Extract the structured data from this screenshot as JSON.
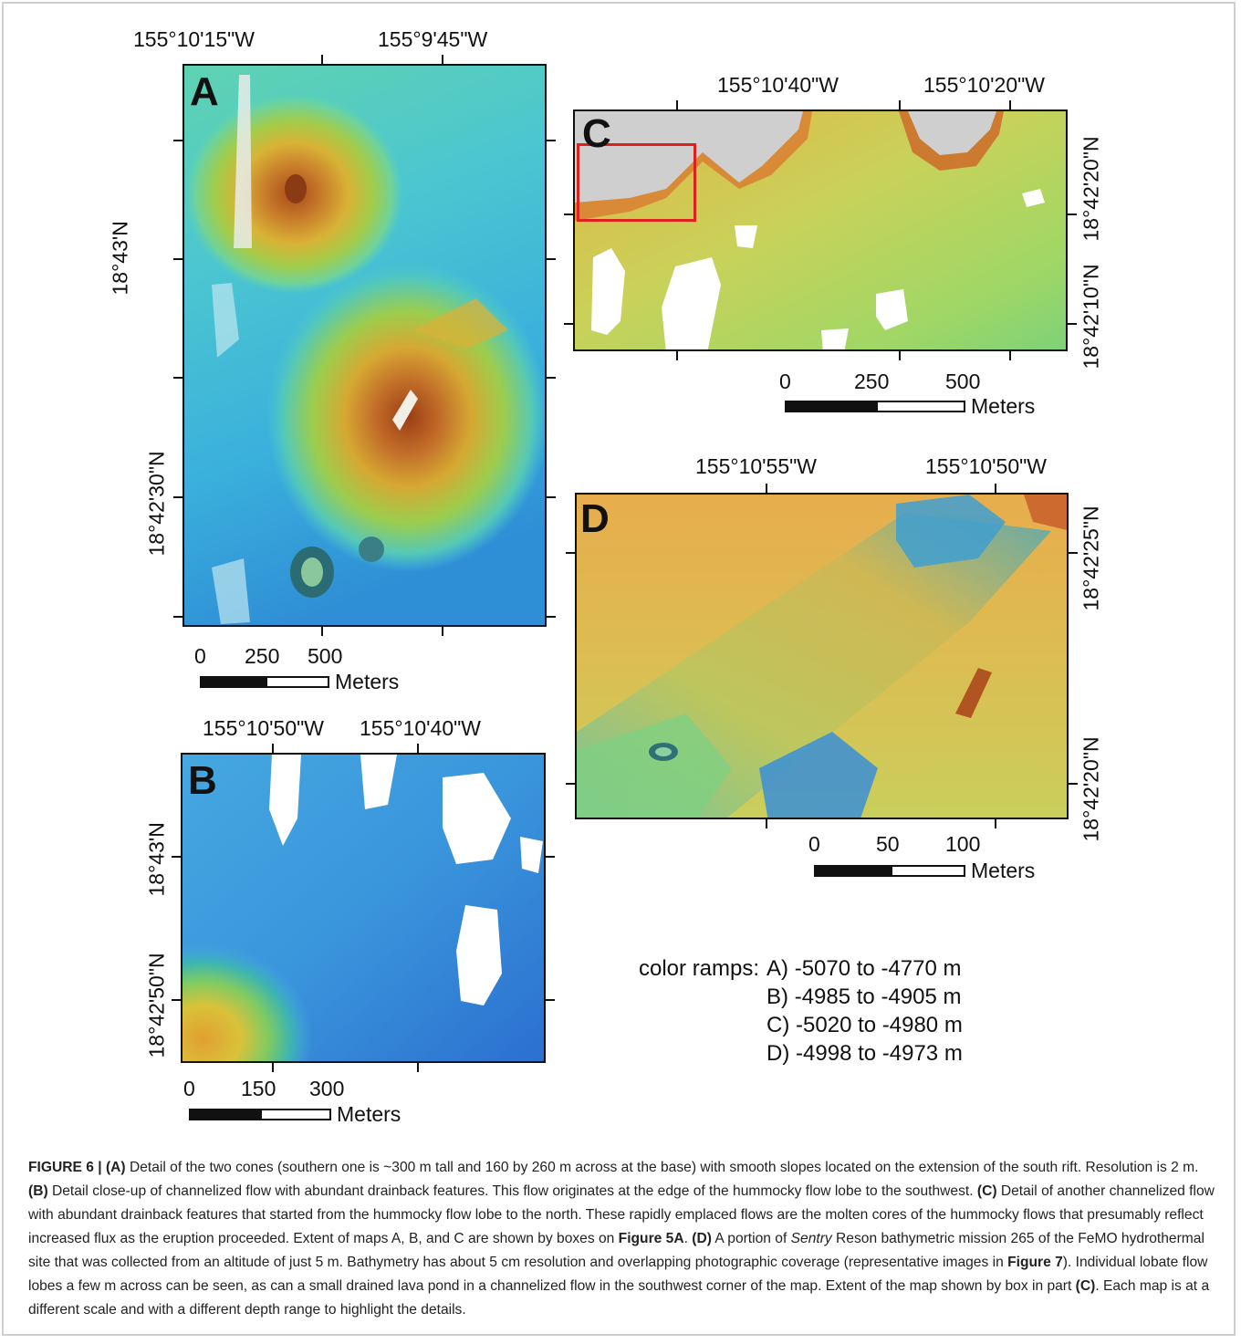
{
  "panels": {
    "A": {
      "letter": "A",
      "lon_labels": [
        "155°10'15\"W",
        "155°9'45\"W"
      ],
      "lat_labels": [
        "18°43'N",
        "18°42'30\"N"
      ],
      "scale": {
        "ticks": [
          "0",
          "250",
          "500"
        ],
        "unit": "Meters"
      }
    },
    "B": {
      "letter": "B",
      "lon_labels": [
        "155°10'50\"W",
        "155°10'40\"W"
      ],
      "lat_labels": [
        "18°43'N",
        "18°42'50\"N"
      ],
      "scale": {
        "ticks": [
          "0",
          "150",
          "300"
        ],
        "unit": "Meters"
      }
    },
    "C": {
      "letter": "C",
      "lon_labels": [
        "155°10'40\"W",
        "155°10'20\"W"
      ],
      "lat_labels": [
        "18°42'20\"N",
        "18°42'10\"N"
      ],
      "scale": {
        "ticks": [
          "0",
          "250",
          "500"
        ],
        "unit": "Meters"
      }
    },
    "D": {
      "letter": "D",
      "lon_labels": [
        "155°10'55\"W",
        "155°10'50\"W"
      ],
      "lat_labels": [
        "18°42'25\"N",
        "18°42'20\"N"
      ],
      "scale": {
        "ticks": [
          "0",
          "50",
          "100"
        ],
        "unit": "Meters"
      }
    }
  },
  "legend": {
    "prefix": "color ramps:",
    "lines": [
      "A) -5070 to -4770 m",
      "B) -4985 to -4905 m",
      "C) -5020 to -4980 m",
      "D) -4998 to -4973 m"
    ]
  },
  "caption": {
    "figure_label": "FIGURE 6 | ",
    "a_label": "(A)",
    "a_text": " Detail of the two cones (southern one is ~300 m tall and 160 by 260 m across at the base) with smooth slopes located on the extension of the south rift. Resolution is 2 m. ",
    "b_label": "(B)",
    "b_text": " Detail close-up of channelized flow with abundant drainback features. This flow originates at the edge of the hummocky flow lobe to the southwest. ",
    "c_label": "(C)",
    "c_text": " Detail of another channelized flow with abundant drainback features that started from the hummocky flow lobe to the north. These rapidly emplaced flows are the molten cores of the hummocky flows that presumably reflect increased flux as the eruption proceeded. Extent of maps A, B, and C are shown by boxes on ",
    "fig5a": "Figure 5A",
    "d_pre": ". ",
    "d_label": "(D)",
    "d_text1": " A portion of ",
    "sentry": "Sentry",
    "d_text2": " Reson bathymetric mission 265 of the FeMO hydrothermal site that was collected from an altitude of just 5 m. Bathymetry has about 5 cm resolution and overlapping photographic coverage (representative images in ",
    "fig7": "Figure 7",
    "d_text3": "). Individual lobate flow lobes a few m across can be seen, as can a small drained lava pond in a channelized flow in the southwest corner of the map. Extent of the map shown by box in part ",
    "c_ref": "(C)",
    "d_text4": ". Each map is at a different scale and with a different depth range to highlight the details."
  }
}
